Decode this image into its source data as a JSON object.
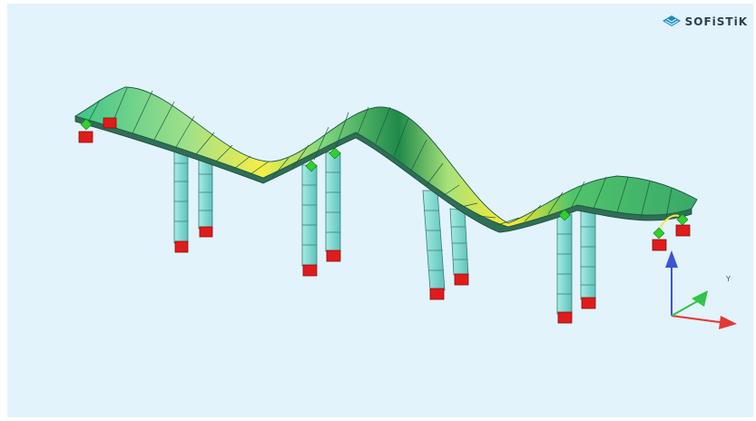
{
  "logo": {
    "text": "SOFiSTiK",
    "icon": "sofistik-diamond-icon",
    "color": "#2c3e50"
  },
  "axes": {
    "y_label": "Y",
    "colors": {
      "x": "#e53935",
      "y": "#33c24a",
      "z": "#3b55d6"
    }
  },
  "colors": {
    "background": "#e2f3fb",
    "deck_low": "#ffef3a",
    "deck_mid": "#6fd37a",
    "deck_high": "#1f8a4a",
    "column": "#8edfd8",
    "support": "#e01b1b",
    "hinge": "#2ed12e"
  }
}
